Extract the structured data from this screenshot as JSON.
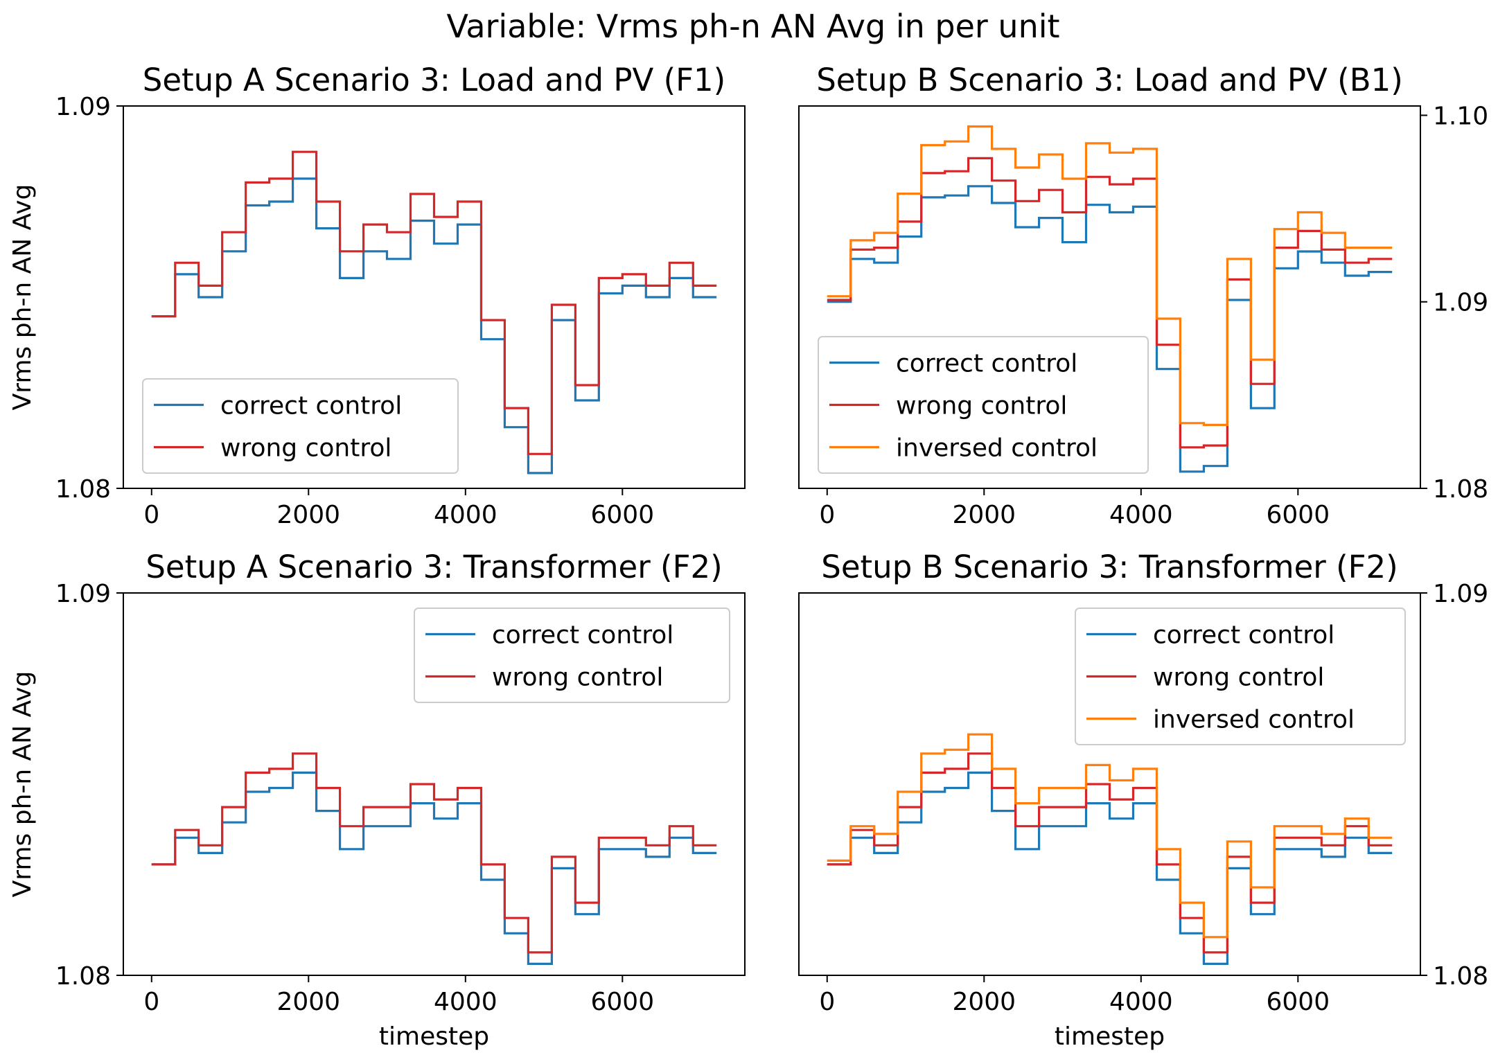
{
  "suptitle": "Variable: Vrms ph-n AN Avg in per unit",
  "colors": {
    "correct": "#1f77b4",
    "wrong": "#d62728",
    "inversed": "#ff7f0e"
  },
  "chart_data": [
    {
      "type": "line",
      "step": "post",
      "title": "Setup A Scenario 3: Load and PV (F1)",
      "xlabel": "",
      "ylabel": "Vrms ph-n AN Avg",
      "xlim": [
        -360,
        7560
      ],
      "ylim": [
        1.08,
        1.09
      ],
      "xticks": [
        0,
        2000,
        4000,
        6000
      ],
      "yticks": [
        1.08,
        1.09
      ],
      "ytick_labels": [
        "1.08",
        "1.09"
      ],
      "y_axis_side": "left",
      "legend_position": "lower-left",
      "x": [
        0,
        300,
        600,
        900,
        1200,
        1500,
        1800,
        2100,
        2400,
        2700,
        3000,
        3300,
        3600,
        3900,
        4200,
        4500,
        4800,
        5100,
        5400,
        5700,
        6000,
        6300,
        6600,
        6900,
        7200
      ],
      "series": [
        {
          "name": "correct control",
          "color_key": "correct",
          "values": [
            1.0845,
            1.0856,
            1.085,
            1.0862,
            1.0874,
            1.0875,
            1.0881,
            1.0868,
            1.0855,
            1.0862,
            1.086,
            1.087,
            1.0864,
            1.0869,
            1.0839,
            1.0816,
            1.0804,
            1.0844,
            1.0823,
            1.0851,
            1.0853,
            1.085,
            1.0855,
            1.085,
            1.085
          ]
        },
        {
          "name": "wrong control",
          "color_key": "wrong",
          "values": [
            1.0845,
            1.0859,
            1.0853,
            1.0867,
            1.088,
            1.0881,
            1.0888,
            1.0875,
            1.0862,
            1.0869,
            1.0867,
            1.0877,
            1.0871,
            1.0875,
            1.0844,
            1.0821,
            1.0809,
            1.0848,
            1.0827,
            1.0855,
            1.0856,
            1.0853,
            1.0859,
            1.0853,
            1.0853
          ]
        }
      ]
    },
    {
      "type": "line",
      "step": "post",
      "title": "Setup B Scenario 3: Load and PV (B1)",
      "xlabel": "",
      "ylabel": "",
      "xlim": [
        -360,
        7560
      ],
      "ylim": [
        1.08,
        1.1005
      ],
      "xticks": [
        0,
        2000,
        4000,
        6000
      ],
      "yticks": [
        1.08,
        1.09,
        1.1
      ],
      "ytick_labels": [
        "1.08",
        "1.09",
        "1.10"
      ],
      "y_axis_side": "right",
      "legend_position": "lower-left",
      "x": [
        0,
        300,
        600,
        900,
        1200,
        1500,
        1800,
        2100,
        2400,
        2700,
        3000,
        3300,
        3600,
        3900,
        4200,
        4500,
        4800,
        5100,
        5400,
        5700,
        6000,
        6300,
        6600,
        6900,
        7200
      ],
      "series": [
        {
          "name": "correct control",
          "color_key": "correct",
          "values": [
            1.09,
            1.0923,
            1.0921,
            1.0935,
            1.0956,
            1.0957,
            1.0962,
            1.0953,
            1.094,
            1.0945,
            1.0932,
            1.0952,
            1.0948,
            1.0951,
            1.0864,
            1.0809,
            1.0812,
            1.0901,
            1.0843,
            1.0918,
            1.0927,
            1.0921,
            1.0914,
            1.0916,
            1.0916
          ]
        },
        {
          "name": "wrong control",
          "color_key": "wrong",
          "values": [
            1.0901,
            1.0928,
            1.0929,
            1.0943,
            1.0969,
            1.097,
            1.0977,
            1.0965,
            1.0954,
            1.096,
            1.0948,
            1.0967,
            1.0963,
            1.0966,
            1.0877,
            1.0822,
            1.0823,
            1.0912,
            1.0856,
            1.0929,
            1.0938,
            1.0928,
            1.0921,
            1.0923,
            1.0923
          ]
        },
        {
          "name": "inversed control",
          "color_key": "inversed",
          "values": [
            1.0903,
            1.0933,
            1.0937,
            1.0958,
            1.0984,
            1.0986,
            1.0994,
            1.0982,
            1.0972,
            1.0979,
            1.0966,
            1.0985,
            1.098,
            1.0982,
            1.0891,
            1.0835,
            1.0834,
            1.0923,
            1.0869,
            1.0939,
            1.0948,
            1.0937,
            1.0929,
            1.0929,
            1.0929
          ]
        }
      ]
    },
    {
      "type": "line",
      "step": "post",
      "title": "Setup A Scenario 3: Transformer (F2)",
      "xlabel": "timestep",
      "ylabel": "Vrms ph-n AN Avg",
      "xlim": [
        -360,
        7560
      ],
      "ylim": [
        1.08,
        1.09
      ],
      "xticks": [
        0,
        2000,
        4000,
        6000
      ],
      "yticks": [
        1.08,
        1.09
      ],
      "ytick_labels": [
        "1.08",
        "1.09"
      ],
      "y_axis_side": "left",
      "legend_position": "upper-right",
      "x": [
        0,
        300,
        600,
        900,
        1200,
        1500,
        1800,
        2100,
        2400,
        2700,
        3000,
        3300,
        3600,
        3900,
        4200,
        4500,
        4800,
        5100,
        5400,
        5700,
        6000,
        6300,
        6600,
        6900,
        7200
      ],
      "series": [
        {
          "name": "correct control",
          "color_key": "correct",
          "values": [
            1.0829,
            1.0836,
            1.0832,
            1.084,
            1.0848,
            1.0849,
            1.0853,
            1.0843,
            1.0833,
            1.0839,
            1.0839,
            1.0845,
            1.0841,
            1.0845,
            1.0825,
            1.0811,
            1.0803,
            1.0828,
            1.0816,
            1.0833,
            1.0833,
            1.0831,
            1.0836,
            1.0832,
            1.0832
          ]
        },
        {
          "name": "wrong control",
          "color_key": "wrong",
          "values": [
            1.0829,
            1.0838,
            1.0834,
            1.0844,
            1.0853,
            1.0854,
            1.0858,
            1.0849,
            1.0839,
            1.0844,
            1.0844,
            1.085,
            1.0846,
            1.0849,
            1.0829,
            1.0815,
            1.0806,
            1.0831,
            1.0819,
            1.0836,
            1.0836,
            1.0834,
            1.0839,
            1.0834,
            1.0834
          ]
        }
      ]
    },
    {
      "type": "line",
      "step": "post",
      "title": "Setup B Scenario 3: Transformer (F2)",
      "xlabel": "timestep",
      "ylabel": "",
      "xlim": [
        -360,
        7560
      ],
      "ylim": [
        1.08,
        1.09
      ],
      "xticks": [
        0,
        2000,
        4000,
        6000
      ],
      "yticks": [
        1.08,
        1.09
      ],
      "ytick_labels": [
        "1.08",
        "1.09"
      ],
      "y_axis_side": "right",
      "legend_position": "upper-right",
      "x": [
        0,
        300,
        600,
        900,
        1200,
        1500,
        1800,
        2100,
        2400,
        2700,
        3000,
        3300,
        3600,
        3900,
        4200,
        4500,
        4800,
        5100,
        5400,
        5700,
        6000,
        6300,
        6600,
        6900,
        7200
      ],
      "series": [
        {
          "name": "correct control",
          "color_key": "correct",
          "values": [
            1.0829,
            1.0836,
            1.0832,
            1.084,
            1.0848,
            1.0849,
            1.0853,
            1.0843,
            1.0833,
            1.0839,
            1.0839,
            1.0845,
            1.0841,
            1.0845,
            1.0825,
            1.0811,
            1.0803,
            1.0828,
            1.0816,
            1.0833,
            1.0833,
            1.0831,
            1.0836,
            1.0832,
            1.0832
          ]
        },
        {
          "name": "wrong control",
          "color_key": "wrong",
          "values": [
            1.0829,
            1.0838,
            1.0834,
            1.0844,
            1.0853,
            1.0854,
            1.0858,
            1.0849,
            1.0839,
            1.0844,
            1.0844,
            1.085,
            1.0846,
            1.0849,
            1.0829,
            1.0815,
            1.0806,
            1.0831,
            1.0819,
            1.0836,
            1.0836,
            1.0834,
            1.0839,
            1.0834,
            1.0834
          ]
        },
        {
          "name": "inversed control",
          "color_key": "inversed",
          "values": [
            1.083,
            1.0839,
            1.0837,
            1.0848,
            1.0858,
            1.0859,
            1.0863,
            1.0854,
            1.0845,
            1.0849,
            1.0849,
            1.0855,
            1.0851,
            1.0854,
            1.0833,
            1.0819,
            1.081,
            1.0835,
            1.0823,
            1.0839,
            1.0839,
            1.0837,
            1.0841,
            1.0836,
            1.0836
          ]
        }
      ]
    }
  ]
}
